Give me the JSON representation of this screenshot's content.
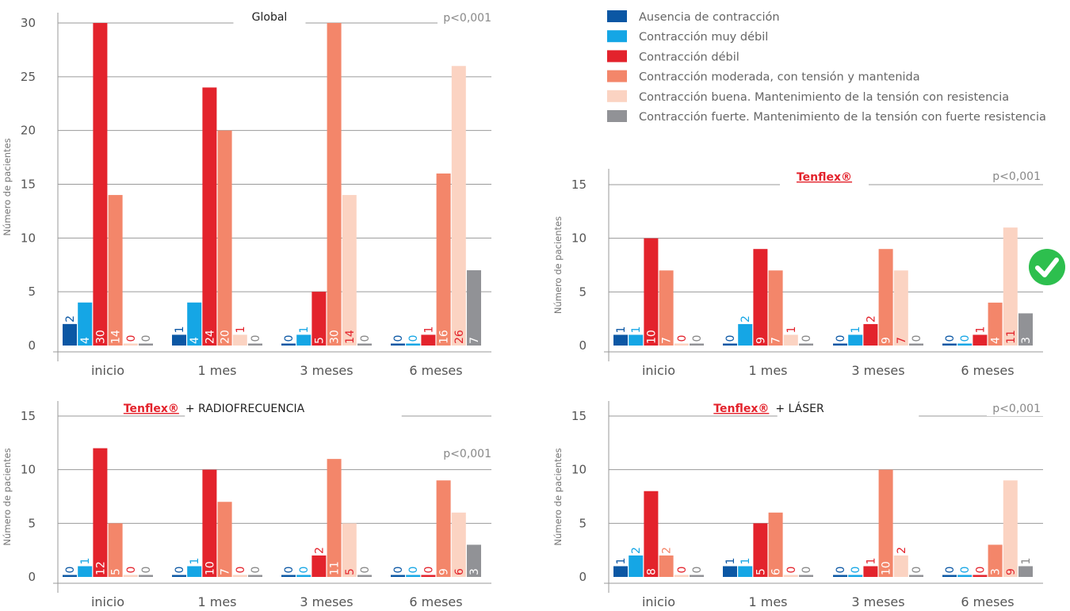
{
  "legend": [
    {
      "label": "Ausencia de contracción",
      "color": "#0b57a4"
    },
    {
      "label": "Contracción muy débil",
      "color": "#15a6e5"
    },
    {
      "label": "Contracción débil",
      "color": "#e3232c"
    },
    {
      "label": "Contracción moderada, con tensión y mantenida",
      "color": "#f3866a"
    },
    {
      "label": "Contracción buena.  Mantenimiento de la tensión con resistencia",
      "color": "#fbd3c2"
    },
    {
      "label": "Contracción fuerte. Mantenimiento de la tensión con fuerte resistencia",
      "color": "#919296"
    }
  ],
  "badge_icon": "check-circle-icon",
  "badge_color": "#2dbf4e",
  "chart_data": [
    {
      "id": "global",
      "type": "bar",
      "title": "Global",
      "brand": "",
      "title_suffix": "",
      "pvalue": "p<0,001",
      "ylabel": "Número de pacientes",
      "ylim": [
        0,
        30
      ],
      "yticks": [
        0,
        5,
        10,
        15,
        20,
        25,
        30
      ],
      "categories": [
        "inicio",
        "1 mes",
        "3 meses",
        "6 meses"
      ],
      "series": [
        {
          "values": [
            2,
            1,
            0,
            0
          ]
        },
        {
          "values": [
            4,
            4,
            1,
            0
          ]
        },
        {
          "values": [
            30,
            24,
            5,
            1
          ]
        },
        {
          "values": [
            14,
            20,
            30,
            16
          ]
        },
        {
          "values": [
            0,
            1,
            14,
            26
          ]
        },
        {
          "values": [
            0,
            0,
            0,
            7
          ]
        }
      ]
    },
    {
      "id": "tenflex",
      "type": "bar",
      "title": "",
      "brand": "Tenflex®",
      "title_suffix": "",
      "pvalue": "p<0,001",
      "ylabel": "Número de pacientes",
      "ylim": [
        0,
        15
      ],
      "yticks": [
        0,
        5,
        10,
        15
      ],
      "categories": [
        "inicio",
        "1 mes",
        "3 meses",
        "6 meses"
      ],
      "series": [
        {
          "values": [
            1,
            0,
            0,
            0
          ]
        },
        {
          "values": [
            1,
            2,
            1,
            0
          ]
        },
        {
          "values": [
            10,
            9,
            2,
            1
          ]
        },
        {
          "values": [
            7,
            7,
            9,
            4
          ]
        },
        {
          "values": [
            0,
            1,
            7,
            11
          ]
        },
        {
          "values": [
            0,
            0,
            0,
            3
          ]
        }
      ]
    },
    {
      "id": "tenflex-radiofrecuencia",
      "type": "bar",
      "title": "",
      "brand": "Tenflex®",
      "title_suffix": "+ RADIOFRECUENCIA",
      "pvalue": "p<0,001",
      "ylabel": "Número de pacientes",
      "ylim": [
        0,
        15
      ],
      "yticks": [
        0,
        5,
        10,
        15
      ],
      "categories": [
        "inicio",
        "1 mes",
        "3 meses",
        "6 meses"
      ],
      "series": [
        {
          "values": [
            0,
            0,
            0,
            0
          ]
        },
        {
          "values": [
            1,
            1,
            0,
            0
          ]
        },
        {
          "values": [
            12,
            10,
            2,
            0
          ]
        },
        {
          "values": [
            5,
            7,
            11,
            9
          ]
        },
        {
          "values": [
            0,
            0,
            5,
            6
          ]
        },
        {
          "values": [
            0,
            0,
            0,
            3
          ]
        }
      ]
    },
    {
      "id": "tenflex-laser",
      "type": "bar",
      "title": "",
      "brand": "Tenflex®",
      "title_suffix": "+ LÁSER",
      "pvalue": "p<0,001",
      "ylabel": "Número de pacientes",
      "ylim": [
        0,
        15
      ],
      "yticks": [
        0,
        5,
        10,
        15
      ],
      "categories": [
        "inicio",
        "1 mes",
        "3 meses",
        "6 meses"
      ],
      "series": [
        {
          "values": [
            1,
            1,
            0,
            0
          ]
        },
        {
          "values": [
            2,
            1,
            0,
            0
          ]
        },
        {
          "values": [
            8,
            5,
            1,
            0
          ]
        },
        {
          "values": [
            2,
            6,
            10,
            3
          ]
        },
        {
          "values": [
            0,
            0,
            2,
            9
          ]
        },
        {
          "values": [
            0,
            0,
            0,
            1
          ]
        }
      ]
    }
  ]
}
